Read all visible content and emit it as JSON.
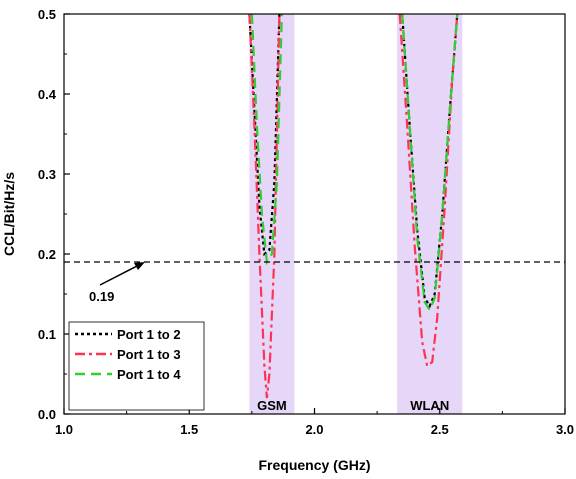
{
  "chart_data": {
    "type": "line",
    "xlabel": "Frequency (GHz)",
    "ylabel": "CCL/Bit/Hz/s",
    "xlim": [
      1.0,
      3.0
    ],
    "ylim": [
      0.0,
      0.5
    ],
    "xticks": [
      "1.0",
      "1.5",
      "2.0",
      "2.5",
      "3.0"
    ],
    "yticks": [
      "0.0",
      "0.1",
      "0.2",
      "0.3",
      "0.4",
      "0.5"
    ],
    "grid": false,
    "legend_position": "bottom-left",
    "bands": [
      {
        "label": "GSM",
        "range": [
          1.74,
          1.92
        ],
        "color": "#e6d6f7"
      },
      {
        "label": "WLAN",
        "range": [
          2.33,
          2.59
        ],
        "color": "#e6d6f7"
      }
    ],
    "reference_line": {
      "y": 0.19,
      "label": "0.19",
      "style": "dashed",
      "color": "#000000"
    },
    "series": [
      {
        "name": "Port 1 to 2",
        "color": "#000000",
        "dash": "short-dash",
        "segments": [
          [
            [
              1.74,
              0.5
            ],
            [
              1.76,
              0.38
            ],
            [
              1.78,
              0.26
            ],
            [
              1.8,
              0.2
            ],
            [
              1.82,
              0.205
            ],
            [
              1.84,
              0.29
            ],
            [
              1.86,
              0.5
            ]
          ],
          [
            [
              2.35,
              0.5
            ],
            [
              2.38,
              0.36
            ],
            [
              2.41,
              0.23
            ],
            [
              2.44,
              0.145
            ],
            [
              2.46,
              0.135
            ],
            [
              2.48,
              0.15
            ],
            [
              2.51,
              0.25
            ],
            [
              2.54,
              0.38
            ],
            [
              2.57,
              0.5
            ]
          ]
        ]
      },
      {
        "name": "Port 1 to 3",
        "color": "#ff3355",
        "dash": "dash-dot",
        "segments": [
          [
            [
              1.74,
              0.5
            ],
            [
              1.76,
              0.36
            ],
            [
              1.78,
              0.2
            ],
            [
              1.8,
              0.06
            ],
            [
              1.81,
              0.02
            ],
            [
              1.82,
              0.05
            ],
            [
              1.84,
              0.2
            ],
            [
              1.86,
              0.5
            ]
          ],
          [
            [
              2.34,
              0.5
            ],
            [
              2.37,
              0.36
            ],
            [
              2.4,
              0.21
            ],
            [
              2.43,
              0.09
            ],
            [
              2.45,
              0.06
            ],
            [
              2.47,
              0.065
            ],
            [
              2.49,
              0.12
            ],
            [
              2.52,
              0.26
            ],
            [
              2.55,
              0.42
            ],
            [
              2.57,
              0.5
            ]
          ]
        ]
      },
      {
        "name": "Port 1 to 4",
        "color": "#33cc33",
        "dash": "long-dash",
        "segments": [
          [
            [
              1.75,
              0.5
            ],
            [
              1.77,
              0.36
            ],
            [
              1.79,
              0.25
            ],
            [
              1.81,
              0.19
            ],
            [
              1.83,
              0.2
            ],
            [
              1.85,
              0.29
            ],
            [
              1.87,
              0.5
            ]
          ],
          [
            [
              2.35,
              0.5
            ],
            [
              2.38,
              0.36
            ],
            [
              2.41,
              0.22
            ],
            [
              2.44,
              0.14
            ],
            [
              2.46,
              0.13
            ],
            [
              2.48,
              0.145
            ],
            [
              2.51,
              0.25
            ],
            [
              2.54,
              0.38
            ],
            [
              2.57,
              0.5
            ]
          ]
        ]
      }
    ]
  }
}
